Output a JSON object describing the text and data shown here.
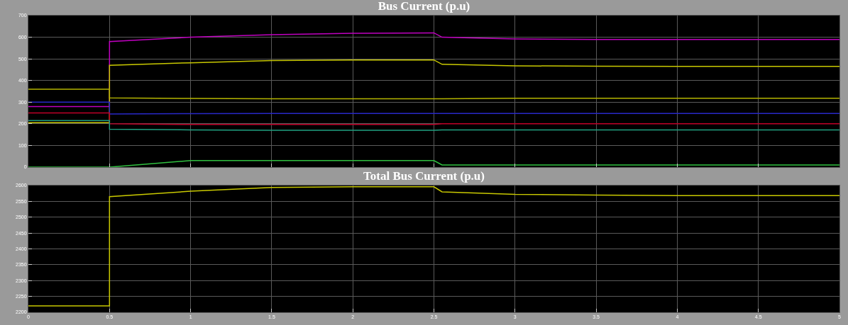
{
  "chart_data": [
    {
      "type": "line",
      "title": "Bus Current (p.u)",
      "x": [
        0,
        0.5,
        0.5,
        1,
        1.5,
        2,
        2.5,
        2.55,
        3,
        3.5,
        4,
        4.5,
        5
      ],
      "series": [
        {
          "color": "#c000c0",
          "values": [
            280,
            280,
            580,
            600,
            612,
            618,
            620,
            600,
            592,
            590,
            590,
            590,
            590
          ]
        },
        {
          "color": "#c8c800",
          "values": [
            205,
            205,
            470,
            482,
            492,
            495,
            495,
            475,
            468,
            466,
            465,
            465,
            465
          ]
        },
        {
          "color": "#b4b400",
          "values": [
            360,
            360,
            320,
            317,
            316,
            316,
            316,
            316,
            318,
            318,
            318,
            318,
            318
          ]
        },
        {
          "color": "#2828c8",
          "values": [
            300,
            300,
            245,
            247,
            248,
            248,
            248,
            248,
            248,
            248,
            248,
            248,
            248
          ]
        },
        {
          "color": "#c00028",
          "values": [
            250,
            250,
            200,
            197,
            197,
            197,
            197,
            200,
            200,
            200,
            200,
            200,
            200
          ]
        },
        {
          "color": "#20a080",
          "values": [
            215,
            215,
            175,
            172,
            170,
            170,
            170,
            172,
            172,
            172,
            172,
            172,
            172
          ]
        },
        {
          "color": "#30c040",
          "values": [
            0,
            0,
            0,
            30,
            30,
            30,
            30,
            10,
            10,
            10,
            10,
            10,
            10
          ]
        }
      ],
      "xlim": [
        0,
        5
      ],
      "xticks": [
        0,
        0.5,
        1,
        1.5,
        2,
        2.5,
        3,
        3.5,
        4,
        4.5,
        5
      ],
      "ylim": [
        0,
        700
      ],
      "yticks": [
        0,
        100,
        200,
        300,
        400,
        500,
        600,
        700
      ],
      "grid": true,
      "tick_labels": "y"
    },
    {
      "type": "line",
      "title": "Total Bus Current (p.u)",
      "x": [
        0,
        0.5,
        0.5,
        1,
        1.5,
        2,
        2.5,
        2.55,
        3,
        3.5,
        4,
        4.5,
        5
      ],
      "series": [
        {
          "color": "#c8c800",
          "values": [
            2220,
            2220,
            2565,
            2582,
            2594,
            2596,
            2596,
            2580,
            2572,
            2570,
            2568,
            2568,
            2568
          ]
        }
      ],
      "xlim": [
        0,
        5
      ],
      "xticks": [
        0,
        0.5,
        1,
        1.5,
        2,
        2.5,
        3,
        3.5,
        4,
        4.5,
        5
      ],
      "ylim": [
        2200,
        2600
      ],
      "yticks": [
        2200,
        2250,
        2300,
        2350,
        2400,
        2450,
        2500,
        2550,
        2600
      ],
      "grid": true
    }
  ]
}
